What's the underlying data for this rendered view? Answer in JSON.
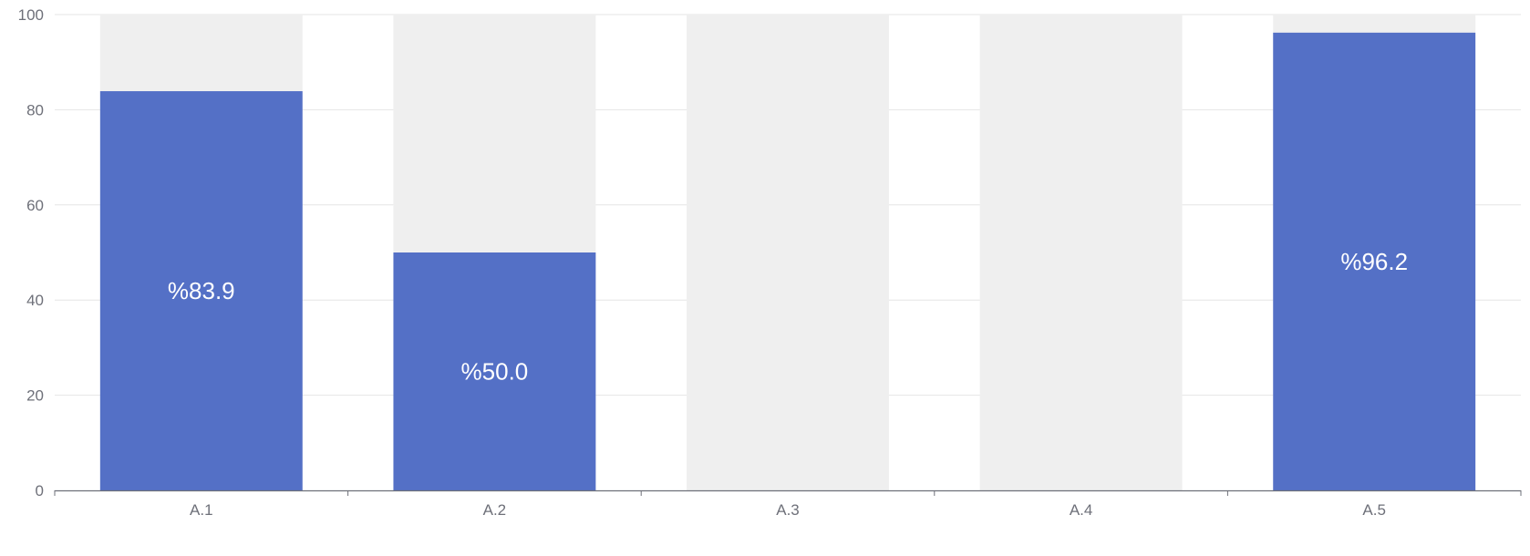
{
  "chart_data": {
    "type": "bar",
    "categories": [
      "A.1",
      "A.2",
      "A.3",
      "A.4",
      "A.5"
    ],
    "values": [
      83.9,
      50.0,
      0,
      0,
      96.2
    ],
    "data_labels": [
      "%83.9",
      "%50.0",
      "",
      "",
      "%96.2"
    ],
    "ylim": [
      0,
      100
    ],
    "yticks": [
      0,
      20,
      40,
      60,
      80,
      100
    ],
    "background_bar_value": 100,
    "grid": true,
    "colors": {
      "bar": "#5470c6",
      "background_bar": "#efefef",
      "grid": "#e6e6e6",
      "axis": "#6e7079"
    }
  }
}
